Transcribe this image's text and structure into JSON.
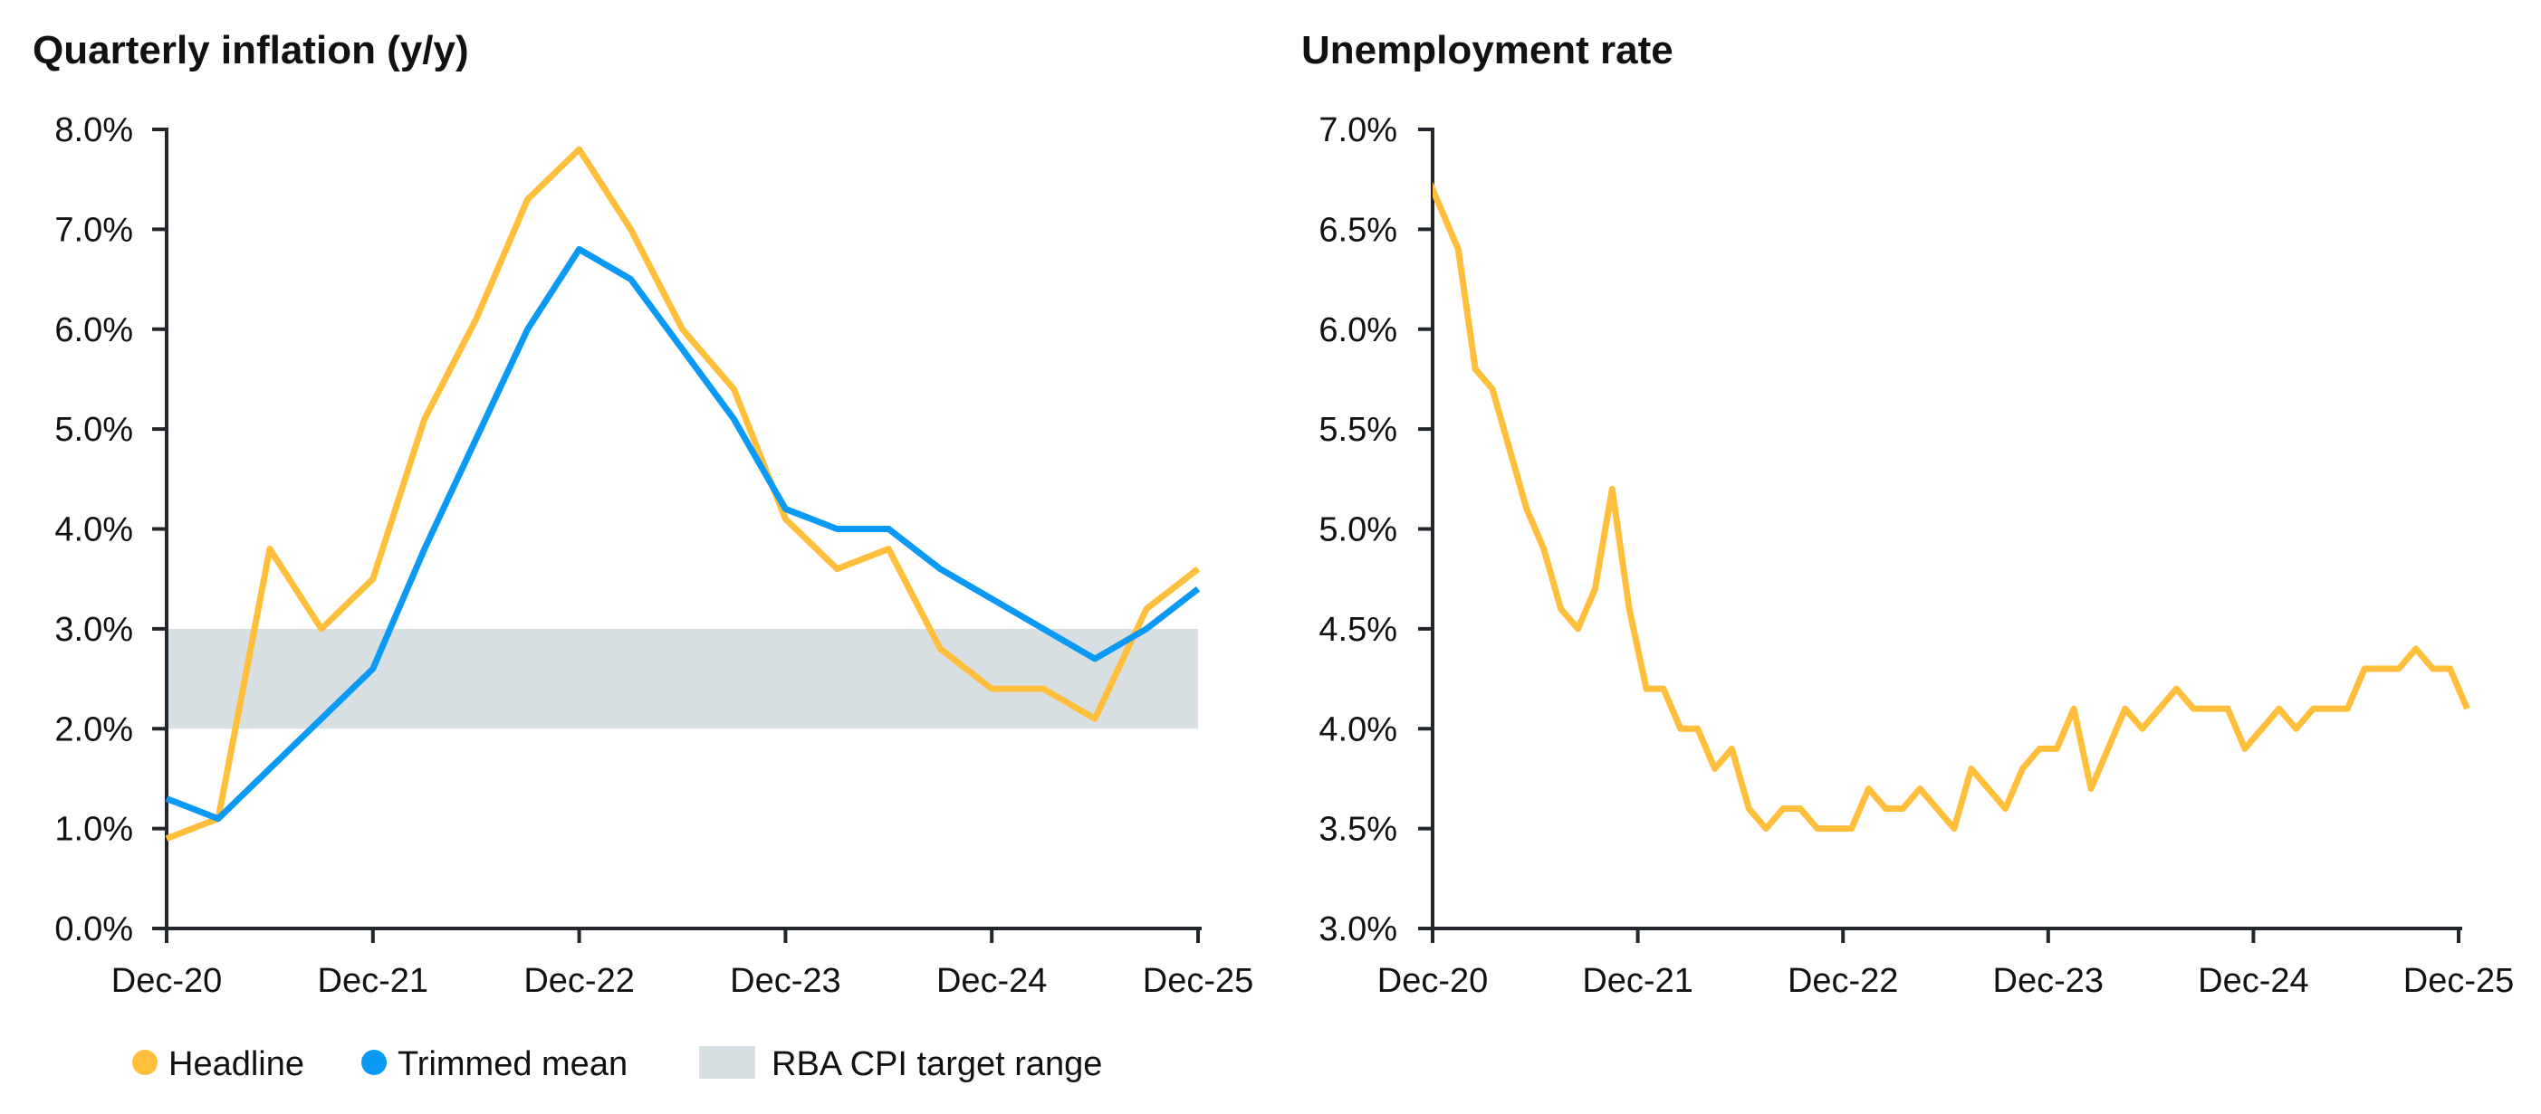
{
  "colors": {
    "headline": "#FFBE3B",
    "trimmed": "#0A99F5",
    "band": "#D8DFE3",
    "axis": "#23272B",
    "unemployment": "#FFBE3B"
  },
  "chart_data": [
    {
      "type": "line",
      "title": "Quarterly inflation (y/y)",
      "xlabel": "",
      "ylabel": "",
      "ylim": [
        0,
        8
      ],
      "yticks": [
        0,
        1,
        2,
        3,
        4,
        5,
        6,
        7,
        8
      ],
      "ytick_labels": [
        "0.0%",
        "1.0%",
        "2.0%",
        "3.0%",
        "4.0%",
        "5.0%",
        "6.0%",
        "7.0%",
        "8.0%"
      ],
      "xtick_labels": [
        "Dec-20",
        "Dec-21",
        "Dec-22",
        "Dec-23",
        "Dec-24",
        "Dec-25"
      ],
      "categories": [
        "Dec-20",
        "Mar-21",
        "Jun-21",
        "Sep-21",
        "Dec-21",
        "Mar-22",
        "Jun-22",
        "Sep-22",
        "Dec-22",
        "Mar-23",
        "Jun-23",
        "Sep-23",
        "Dec-23",
        "Mar-24",
        "Jun-24",
        "Sep-24",
        "Dec-24",
        "Mar-25",
        "Jun-25",
        "Sep-25",
        "Dec-25"
      ],
      "series": [
        {
          "name": "Headline",
          "values": [
            0.9,
            1.1,
            3.8,
            3.0,
            3.5,
            5.1,
            6.1,
            7.3,
            7.8,
            7.0,
            6.0,
            5.4,
            4.1,
            3.6,
            3.8,
            2.8,
            2.4,
            2.4,
            2.1,
            3.2,
            3.6
          ]
        },
        {
          "name": "Trimmed mean",
          "values": [
            1.3,
            1.1,
            1.6,
            2.1,
            2.6,
            3.8,
            4.9,
            6.0,
            6.8,
            6.5,
            5.8,
            5.1,
            4.2,
            4.0,
            4.0,
            3.6,
            3.3,
            3.0,
            2.7,
            3.0,
            3.4
          ]
        }
      ],
      "band": {
        "name": "RBA CPI target range",
        "range": [
          2,
          3
        ]
      },
      "legend": {
        "placement": "bottom-left",
        "items": [
          "Headline",
          "Trimmed mean",
          "RBA CPI target range"
        ]
      },
      "grid": false
    },
    {
      "type": "line",
      "title": "Unemployment rate",
      "xlabel": "",
      "ylabel": "",
      "ylim": [
        3,
        7
      ],
      "yticks": [
        3,
        3.5,
        4,
        4.5,
        5,
        5.5,
        6,
        6.5,
        7
      ],
      "ytick_labels": [
        "3.0%",
        "3.5%",
        "4.0%",
        "4.5%",
        "5.0%",
        "5.5%",
        "6.0%",
        "6.5%",
        "7.0%"
      ],
      "xtick_labels": [
        "Dec-20",
        "Dec-21",
        "Dec-22",
        "Dec-23",
        "Dec-24",
        "Dec-25"
      ],
      "x_unit": "months since Dec-20",
      "first_point_month": -0.5,
      "series": [
        {
          "name": "Unemployment rate",
          "values": [
            6.8,
            6.6,
            6.4,
            5.8,
            5.7,
            5.4,
            5.1,
            4.9,
            4.6,
            4.5,
            4.7,
            5.2,
            4.6,
            4.2,
            4.2,
            4.0,
            4.0,
            3.8,
            3.9,
            3.6,
            3.5,
            3.6,
            3.6,
            3.5,
            3.5,
            3.5,
            3.7,
            3.6,
            3.6,
            3.7,
            3.6,
            3.5,
            3.8,
            3.7,
            3.6,
            3.8,
            3.9,
            3.9,
            4.1,
            3.7,
            3.9,
            4.1,
            4.0,
            4.1,
            4.2,
            4.1,
            4.1,
            4.1,
            3.9,
            4.0,
            4.1,
            4.0,
            4.1,
            4.1,
            4.1,
            4.3,
            4.3,
            4.3,
            4.4,
            4.3,
            4.3,
            4.1
          ]
        }
      ],
      "grid": false
    }
  ]
}
